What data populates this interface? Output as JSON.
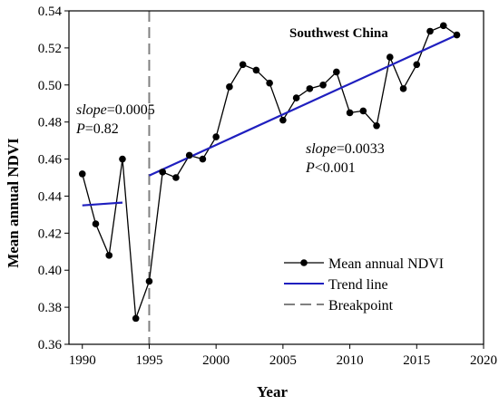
{
  "chart_data": {
    "type": "line",
    "title": "Southwest China",
    "xlabel": "Year",
    "ylabel": "Mean annual NDVI",
    "xlim": [
      1989,
      2020
    ],
    "ylim": [
      0.36,
      0.54
    ],
    "xticks": [
      1990,
      1995,
      2000,
      2005,
      2010,
      2015,
      2020
    ],
    "yticks": [
      0.36,
      0.38,
      0.4,
      0.42,
      0.44,
      0.46,
      0.48,
      0.5,
      0.52,
      0.54
    ],
    "xtick_labels": [
      "1990",
      "1995",
      "2000",
      "2005",
      "2010",
      "2015",
      "2020"
    ],
    "ytick_labels": [
      "0.36",
      "0.38",
      "0.40",
      "0.42",
      "0.44",
      "0.46",
      "0.48",
      "0.50",
      "0.52",
      "0.54"
    ],
    "series": [
      {
        "name": "Mean annual NDVI",
        "color": "#000000",
        "x": [
          1990,
          1991,
          1992,
          1993,
          1994,
          1995,
          1996,
          1997,
          1998,
          1999,
          2000,
          2001,
          2002,
          2003,
          2004,
          2005,
          2006,
          2007,
          2008,
          2009,
          2010,
          2011,
          2012,
          2013,
          2014,
          2015,
          2016,
          2017,
          2018
        ],
        "values": [
          0.452,
          0.425,
          0.408,
          0.46,
          0.374,
          0.394,
          0.453,
          0.45,
          0.462,
          0.46,
          0.472,
          0.499,
          0.511,
          0.508,
          0.501,
          0.481,
          0.493,
          0.498,
          0.5,
          0.507,
          0.485,
          0.486,
          0.478,
          0.515,
          0.498,
          0.511,
          0.529,
          0.532,
          0.527
        ]
      }
    ],
    "trend_lines": [
      {
        "name": "Trend line",
        "color": "#1f1fbf",
        "x": [
          1990,
          1993
        ],
        "y": [
          0.435,
          0.4365
        ]
      },
      {
        "x": [
          1995,
          2018
        ],
        "y": [
          0.4511,
          0.527
        ]
      }
    ],
    "breakpoint": {
      "name": "Breakpoint",
      "x": 1995,
      "color": "#808080"
    },
    "annotations": {
      "pre_slope_label": "slope",
      "pre_slope_value": "=0.0005",
      "pre_p_label": "P",
      "pre_p_value": "=0.82",
      "post_slope_label": "slope",
      "post_slope_value": "=0.0033",
      "post_p_label": "P",
      "post_p_value": "<0.001"
    },
    "legend": {
      "position": "bottom-right",
      "entries": [
        "Mean annual NDVI",
        "Trend line",
        "Breakpoint"
      ]
    }
  }
}
